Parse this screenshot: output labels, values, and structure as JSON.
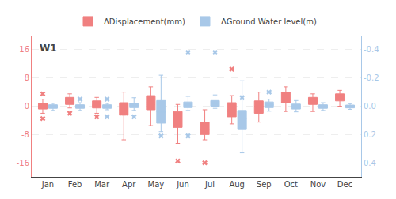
{
  "chart_data": {
    "type": "box",
    "title": "W1",
    "categories": [
      "Jan",
      "Feb",
      "Mar",
      "Apr",
      "May",
      "Jun",
      "Jul",
      "Aug",
      "Sep",
      "Oct",
      "Nov",
      "Dec"
    ],
    "series": [
      {
        "name": "ΔDisplacement(mm)",
        "color": "#F08080",
        "axis": "y",
        "q1": [
          -0.8,
          0.5,
          -0.5,
          -2.5,
          -1.0,
          -6.0,
          -8.0,
          -3.0,
          -2.0,
          1.0,
          0.5,
          1.5
        ],
        "median": [
          0.1,
          1.5,
          0.3,
          -1.0,
          0.5,
          -4.5,
          -6.5,
          -1.0,
          0.0,
          2.0,
          1.5,
          2.0
        ],
        "q3": [
          0.8,
          2.5,
          1.5,
          1.0,
          3.0,
          -1.5,
          -4.5,
          1.0,
          1.5,
          4.0,
          2.5,
          3.5
        ],
        "whislo": [
          -2.0,
          -0.5,
          -2.0,
          -9.5,
          -5.5,
          -10.5,
          -9.5,
          -5.0,
          -4.5,
          -1.5,
          -1.5,
          0.0
        ],
        "whishi": [
          2.0,
          3.5,
          2.5,
          4.0,
          5.5,
          0.5,
          -1.0,
          3.0,
          4.0,
          5.5,
          3.5,
          4.5
        ],
        "mean": [
          0.0,
          1.5,
          0.3,
          -2.5,
          1.0,
          -4.5,
          -6.5,
          -1.5,
          0.0,
          2.0,
          1.5,
          2.0
        ],
        "fliers": [
          [
            -3.5,
            3.5
          ],
          [
            -2.0
          ],
          [
            -3.0
          ],
          [],
          [],
          [
            -15.5
          ],
          [
            -16.0
          ],
          [
            10.5
          ],
          [],
          [],
          [],
          []
        ]
      },
      {
        "name": "ΔGround Water level(m)",
        "color": "#A8C8E8",
        "axis": "y2",
        "q1": [
          -0.01,
          -0.01,
          -0.01,
          -0.02,
          -0.04,
          -0.03,
          -0.04,
          0.03,
          -0.03,
          -0.015,
          -0.01,
          -0.008
        ],
        "median": [
          0.005,
          0.005,
          0.005,
          -0.005,
          0.04,
          -0.01,
          -0.02,
          0.09,
          -0.01,
          0.0,
          0.005,
          0.003
        ],
        "q3": [
          0.015,
          0.015,
          0.015,
          0.01,
          0.12,
          0.01,
          0.0,
          0.16,
          0.01,
          0.02,
          0.015,
          0.012
        ],
        "whislo": [
          -0.02,
          -0.025,
          -0.02,
          -0.06,
          -0.22,
          -0.07,
          -0.08,
          -0.18,
          -0.05,
          -0.04,
          -0.025,
          -0.018
        ],
        "whishi": [
          0.03,
          0.03,
          0.025,
          0.03,
          0.18,
          0.03,
          0.015,
          0.33,
          0.035,
          0.04,
          0.03,
          0.022
        ],
        "mean": [
          0.0,
          0.003,
          0.002,
          -0.01,
          0.04,
          -0.01,
          -0.025,
          0.09,
          -0.01,
          0.0,
          0.003,
          0.002
        ],
        "fliers": [
          [],
          [
            -0.05
          ],
          [
            -0.05,
            0.075
          ],
          [
            0.075
          ],
          [
            0.21
          ],
          [
            -0.38,
            0.21
          ],
          [
            -0.38
          ],
          [
            -0.06
          ],
          [
            -0.1
          ],
          [],
          [],
          []
        ]
      }
    ],
    "ylim": [
      -20,
      20
    ],
    "yticks": [
      -16,
      -8,
      0,
      8,
      16
    ],
    "y2lim": [
      0.5,
      -0.5
    ],
    "y2ticks": [
      0.4,
      0.2,
      {
        "value": 0.0,
        "label": "0.0"
      },
      -0.2,
      -0.4
    ],
    "grid": true
  }
}
